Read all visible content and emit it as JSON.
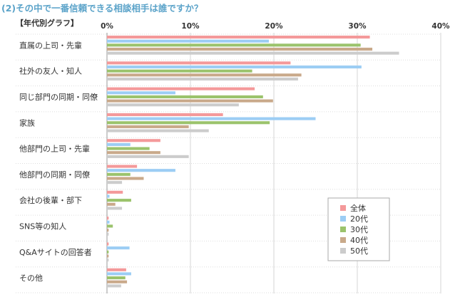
{
  "heading": "(2)その中で一番信頼できる相談相手は誰ですか？",
  "chart_data": {
    "type": "bar",
    "orientation": "horizontal",
    "subtitle": "【年代別グラフ】",
    "xlim": [
      0,
      40
    ],
    "x_ticks": [
      "0%",
      "10%",
      "20%",
      "30%",
      "40%"
    ],
    "grid": true,
    "legend_position": "right",
    "categories": [
      "直属の上司・先輩",
      "社外の友人・知人",
      "同じ部門の同期・同僚",
      "家族",
      "他部門の上司・先輩",
      "他部門の同期・同僚",
      "会社の後輩・部下",
      "SNS等の知人",
      "Q&Aサイトの回答者",
      "その他"
    ],
    "series": [
      {
        "name": "全体",
        "color": "#f4999a",
        "values": [
          31.5,
          22.0,
          17.7,
          13.9,
          6.4,
          3.6,
          1.9,
          0.2,
          0.2,
          2.3
        ]
      },
      {
        "name": "20代",
        "color": "#9ccdf4",
        "values": [
          19.4,
          30.5,
          8.2,
          25.0,
          2.8,
          8.2,
          0.3,
          0.3,
          2.7,
          2.9
        ]
      },
      {
        "name": "30代",
        "color": "#9bc36c",
        "values": [
          30.4,
          17.4,
          18.7,
          19.5,
          5.1,
          2.8,
          2.9,
          0.7,
          0.2,
          2.2
        ]
      },
      {
        "name": "40代",
        "color": "#c9a98a",
        "values": [
          31.8,
          23.3,
          19.9,
          9.8,
          6.4,
          4.4,
          1.0,
          0.2,
          0.2,
          2.4
        ]
      },
      {
        "name": "50代",
        "color": "#cccccc",
        "values": [
          35.0,
          22.9,
          15.8,
          12.2,
          9.8,
          1.8,
          1.8,
          0.2,
          0.2,
          1.7
        ]
      }
    ]
  }
}
